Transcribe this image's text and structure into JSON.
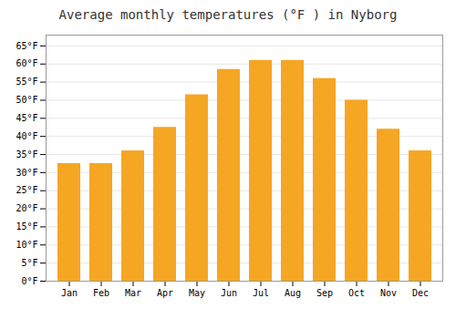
{
  "chart_data": {
    "type": "bar",
    "title": "Average monthly temperatures (°F ) in Nyborg",
    "categories": [
      "Jan",
      "Feb",
      "Mar",
      "Apr",
      "May",
      "Jun",
      "Jul",
      "Aug",
      "Sep",
      "Oct",
      "Nov",
      "Dec"
    ],
    "values": [
      32.5,
      32.5,
      36.0,
      42.5,
      51.5,
      58.5,
      61.0,
      61.0,
      56.0,
      50.0,
      42.0,
      36.0
    ],
    "color": "#F5A623",
    "ylim": [
      0,
      68
    ],
    "yticks": [
      {
        "value": 0,
        "label": "0°F"
      },
      {
        "value": 5,
        "label": "5°F"
      },
      {
        "value": 10,
        "label": "10°F"
      },
      {
        "value": 15,
        "label": "15°F"
      },
      {
        "value": 20,
        "label": "20°F"
      },
      {
        "value": 25,
        "label": "25°F"
      },
      {
        "value": 30,
        "label": "30°F"
      },
      {
        "value": 35,
        "label": "35°F"
      },
      {
        "value": 40,
        "label": "40°F"
      },
      {
        "value": 45,
        "label": "45°F"
      },
      {
        "value": 50,
        "label": "50°F"
      },
      {
        "value": 55,
        "label": "55°F"
      },
      {
        "value": 60,
        "label": "60°F"
      },
      {
        "value": 65,
        "label": "65°F"
      }
    ],
    "grid": true
  }
}
